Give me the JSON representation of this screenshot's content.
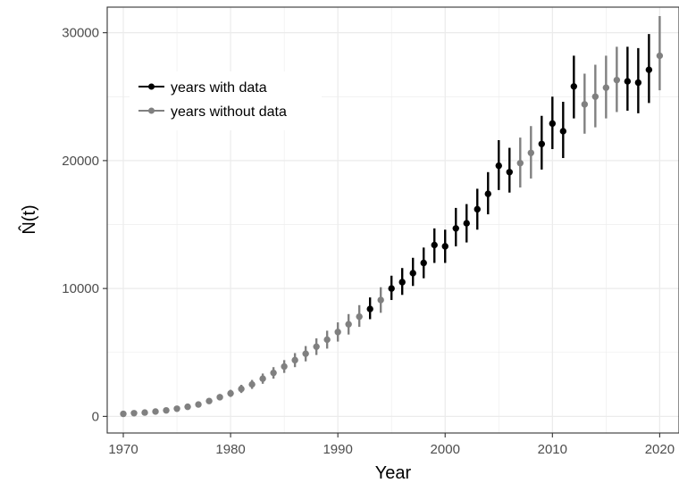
{
  "chart_data": {
    "type": "scatter",
    "title": "",
    "xlabel": "Year",
    "ylabel": "N̂(t)",
    "xlim": [
      1968.5,
      2021.8
    ],
    "ylim": [
      -1300,
      32000
    ],
    "x_ticks": [
      1970,
      1980,
      1990,
      2000,
      2010,
      2020
    ],
    "y_ticks": [
      0,
      10000,
      20000,
      30000
    ],
    "grid": true,
    "legend": {
      "position": "top-left inside",
      "entries": [
        "years with data",
        "years without data"
      ]
    },
    "colors": {
      "with_data": "#000000",
      "without_data": "#808080",
      "grid": "#ebebeb",
      "panel_border": "#333333"
    },
    "series": [
      {
        "name": "years with data",
        "points": [
          {
            "x": 1993,
            "y": 8400,
            "lo": 7600,
            "hi": 9300
          },
          {
            "x": 1995,
            "y": 10000,
            "lo": 9100,
            "hi": 11000
          },
          {
            "x": 1996,
            "y": 10500,
            "lo": 9500,
            "hi": 11600
          },
          {
            "x": 1997,
            "y": 11200,
            "lo": 10200,
            "hi": 12400
          },
          {
            "x": 1998,
            "y": 12000,
            "lo": 10800,
            "hi": 13200
          },
          {
            "x": 1999,
            "y": 13400,
            "lo": 12000,
            "hi": 14700
          },
          {
            "x": 2000,
            "y": 13300,
            "lo": 12000,
            "hi": 14600
          },
          {
            "x": 2001,
            "y": 14700,
            "lo": 13300,
            "hi": 16300
          },
          {
            "x": 2002,
            "y": 15100,
            "lo": 13600,
            "hi": 16600
          },
          {
            "x": 2003,
            "y": 16200,
            "lo": 14600,
            "hi": 17800
          },
          {
            "x": 2004,
            "y": 17400,
            "lo": 15800,
            "hi": 19100
          },
          {
            "x": 2005,
            "y": 19600,
            "lo": 17700,
            "hi": 21600
          },
          {
            "x": 2006,
            "y": 19100,
            "lo": 17500,
            "hi": 21000
          },
          {
            "x": 2009,
            "y": 21300,
            "lo": 19300,
            "hi": 23500
          },
          {
            "x": 2010,
            "y": 22900,
            "lo": 20900,
            "hi": 25000
          },
          {
            "x": 2011,
            "y": 22300,
            "lo": 20200,
            "hi": 24600
          },
          {
            "x": 2012,
            "y": 25800,
            "lo": 23300,
            "hi": 28200
          },
          {
            "x": 2017,
            "y": 26200,
            "lo": 23900,
            "hi": 28900
          },
          {
            "x": 2018,
            "y": 26100,
            "lo": 23700,
            "hi": 28800
          },
          {
            "x": 2019,
            "y": 27100,
            "lo": 24500,
            "hi": 29900
          }
        ]
      },
      {
        "name": "years without data",
        "points": [
          {
            "x": 1970,
            "y": 200,
            "lo": 100,
            "hi": 300
          },
          {
            "x": 1971,
            "y": 250,
            "lo": 150,
            "hi": 350
          },
          {
            "x": 1972,
            "y": 300,
            "lo": 200,
            "hi": 420
          },
          {
            "x": 1973,
            "y": 380,
            "lo": 260,
            "hi": 500
          },
          {
            "x": 1974,
            "y": 470,
            "lo": 340,
            "hi": 600
          },
          {
            "x": 1975,
            "y": 600,
            "lo": 450,
            "hi": 750
          },
          {
            "x": 1976,
            "y": 750,
            "lo": 580,
            "hi": 920
          },
          {
            "x": 1977,
            "y": 930,
            "lo": 740,
            "hi": 1120
          },
          {
            "x": 1978,
            "y": 1200,
            "lo": 980,
            "hi": 1420
          },
          {
            "x": 1979,
            "y": 1500,
            "lo": 1250,
            "hi": 1750
          },
          {
            "x": 1980,
            "y": 1800,
            "lo": 1520,
            "hi": 2080
          },
          {
            "x": 1981,
            "y": 2150,
            "lo": 1830,
            "hi": 2470
          },
          {
            "x": 1982,
            "y": 2500,
            "lo": 2150,
            "hi": 2850
          },
          {
            "x": 1983,
            "y": 2950,
            "lo": 2550,
            "hi": 3350
          },
          {
            "x": 1984,
            "y": 3400,
            "lo": 2950,
            "hi": 3850
          },
          {
            "x": 1985,
            "y": 3900,
            "lo": 3400,
            "hi": 4400
          },
          {
            "x": 1986,
            "y": 4400,
            "lo": 3850,
            "hi": 4950
          },
          {
            "x": 1987,
            "y": 4900,
            "lo": 4300,
            "hi": 5500
          },
          {
            "x": 1988,
            "y": 5450,
            "lo": 4800,
            "hi": 6100
          },
          {
            "x": 1989,
            "y": 6000,
            "lo": 5300,
            "hi": 6700
          },
          {
            "x": 1990,
            "y": 6600,
            "lo": 5850,
            "hi": 7350
          },
          {
            "x": 1991,
            "y": 7200,
            "lo": 6400,
            "hi": 8000
          },
          {
            "x": 1992,
            "y": 7800,
            "lo": 7000,
            "hi": 8700
          },
          {
            "x": 1994,
            "y": 9100,
            "lo": 8100,
            "hi": 10100
          },
          {
            "x": 2007,
            "y": 19800,
            "lo": 17900,
            "hi": 21800
          },
          {
            "x": 2008,
            "y": 20600,
            "lo": 18600,
            "hi": 22700
          },
          {
            "x": 2013,
            "y": 24400,
            "lo": 22100,
            "hi": 26800
          },
          {
            "x": 2014,
            "y": 25000,
            "lo": 22600,
            "hi": 27500
          },
          {
            "x": 2015,
            "y": 25700,
            "lo": 23300,
            "hi": 28200
          },
          {
            "x": 2016,
            "y": 26300,
            "lo": 23800,
            "hi": 28900
          },
          {
            "x": 2020,
            "y": 28200,
            "lo": 25500,
            "hi": 31300
          }
        ]
      }
    ]
  }
}
